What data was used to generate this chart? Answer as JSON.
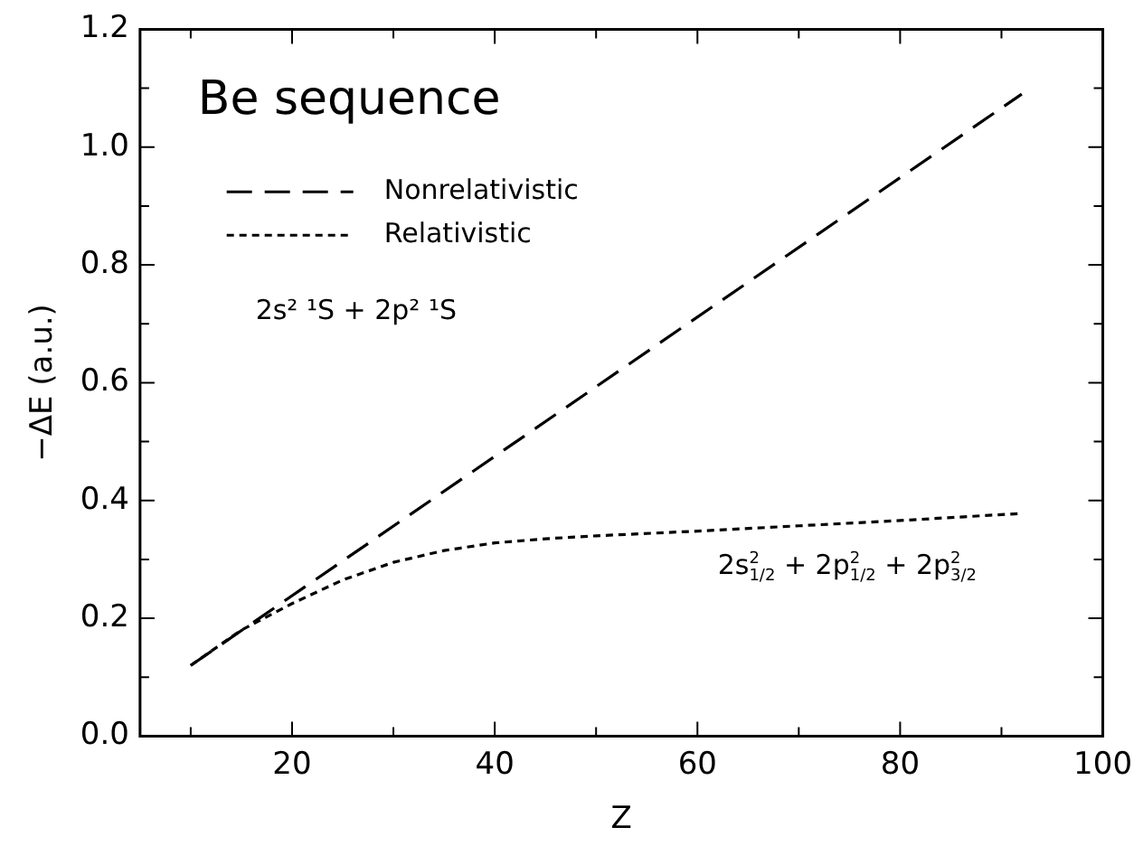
{
  "chart_data": {
    "type": "line",
    "xlabel": "Z",
    "ylabel": "−ΔE (a.u.)",
    "annotations": [
      "Be sequence",
      "2s² ¹S + 2p² ¹S",
      "2s$^{2}$$_{1/2}$ + 2p$^{2}$$_{1/2}$ + 2p$^{2}$$_{3/2}$"
    ],
    "xlim": [
      5,
      100
    ],
    "xticks": [
      {
        "value": 10,
        "label": null
      },
      20,
      {
        "value": 30,
        "label": null
      },
      40,
      {
        "value": 50,
        "label": null
      },
      60,
      {
        "value": 70,
        "label": null
      },
      80,
      {
        "value": 90,
        "label": null
      },
      100
    ],
    "ylim": [
      0,
      1.2
    ],
    "yticks": [
      "0.0",
      {
        "value": 0.1,
        "label": null
      },
      0.2,
      {
        "value": 0.3,
        "label": null
      },
      0.4,
      {
        "value": 0.5,
        "label": null
      },
      0.6,
      {
        "value": 0.7,
        "label": null
      },
      0.8,
      {
        "value": 0.9,
        "label": null
      },
      "1.0",
      {
        "value": 1.1,
        "label": null
      },
      1.2
    ],
    "legend": "top left",
    "marker": "none",
    "series": [
      {
        "name": "Nonrelativistic",
        "color": "#000000",
        "line_style": "dashed",
        "x": [
          10,
          92
        ],
        "values": [
          0.12,
          1.09
        ]
      },
      {
        "name": "Relativistic",
        "color": "#000000",
        "line_style": "dotted",
        "x": [
          10,
          15,
          20,
          25,
          30,
          35,
          40,
          45,
          50,
          60,
          70,
          80,
          92
        ],
        "values": [
          0.12,
          0.18,
          0.225,
          0.265,
          0.295,
          0.315,
          0.328,
          0.335,
          0.34,
          0.348,
          0.357,
          0.366,
          0.378
        ]
      }
    ]
  }
}
